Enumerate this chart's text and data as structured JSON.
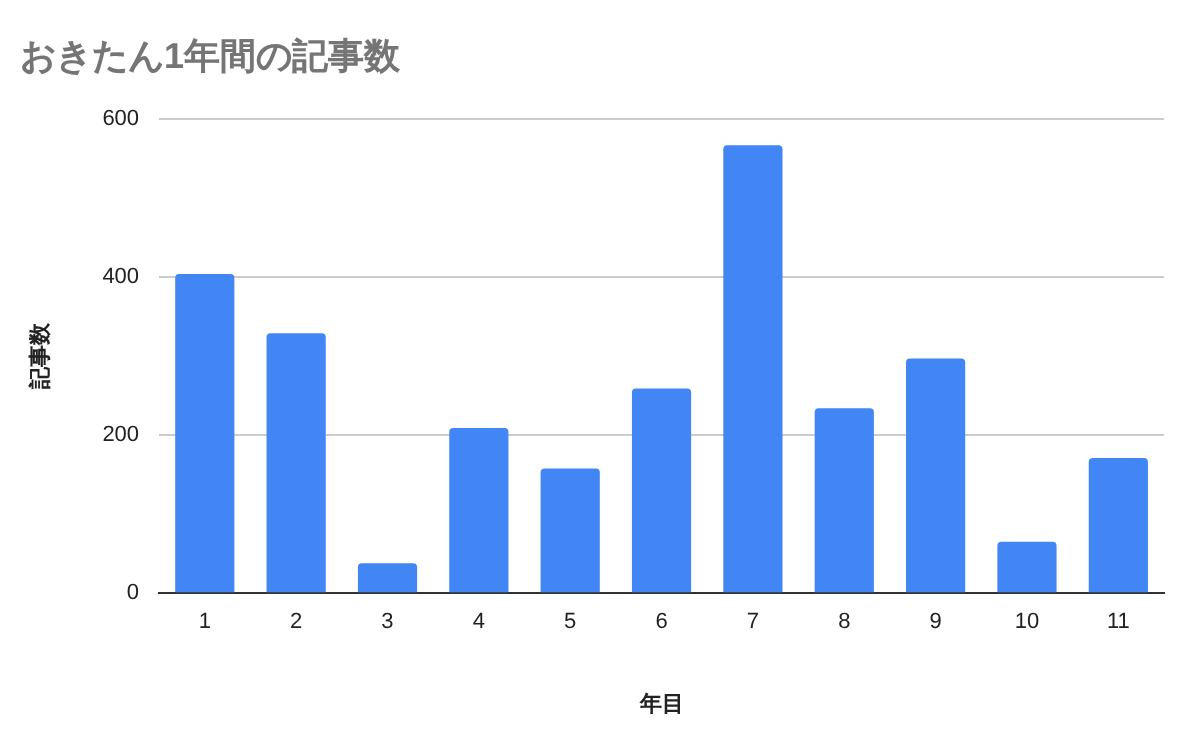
{
  "chart_data": {
    "type": "bar",
    "title": "おきたん1年間の記事数",
    "xlabel": "年目",
    "ylabel": "記事数",
    "categories": [
      "1",
      "2",
      "3",
      "4",
      "5",
      "6",
      "7",
      "8",
      "9",
      "10",
      "11"
    ],
    "values": [
      404,
      329,
      38,
      209,
      158,
      259,
      567,
      234,
      297,
      65,
      171
    ],
    "color": "#4285f4",
    "ylim": [
      0,
      600
    ],
    "yticks": [
      0,
      200,
      400,
      600
    ],
    "grid": "y"
  }
}
